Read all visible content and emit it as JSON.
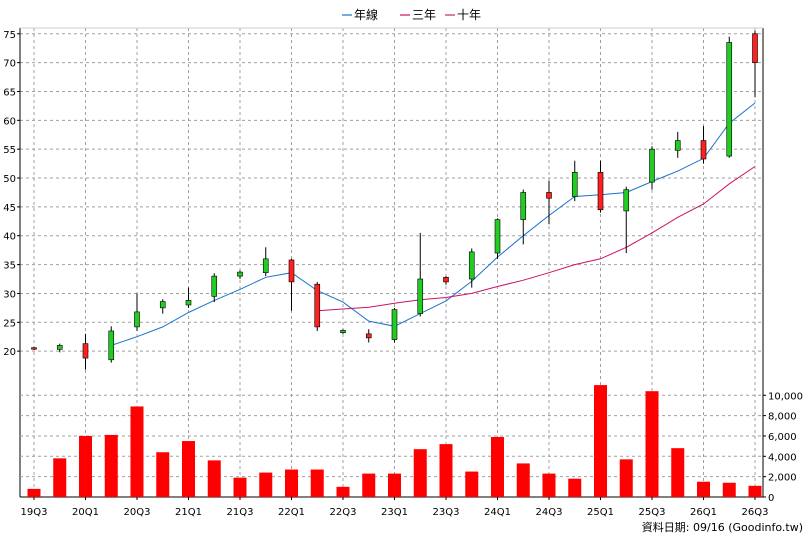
{
  "chart_data": {
    "type": "candlestick",
    "legend": [
      {
        "name": "年線",
        "color": "#1874cd"
      },
      {
        "name": "三年",
        "color": "#cc1166"
      },
      {
        "name": "十年",
        "color": "#b03060"
      }
    ],
    "price_axis": {
      "min": 15,
      "max": 76,
      "ticks": [
        20,
        25,
        30,
        35,
        40,
        45,
        50,
        55,
        60,
        65,
        70,
        75
      ]
    },
    "volume_axis": {
      "min": 0,
      "max": 11500,
      "ticks": [
        0,
        2000,
        4000,
        6000,
        8000,
        10000
      ],
      "tick_labels": [
        "0",
        "2,000",
        "4,000",
        "6,000",
        "8,000",
        "10,000"
      ]
    },
    "x_tick_labels": [
      "19Q3",
      "20Q1",
      "20Q3",
      "21Q1",
      "21Q3",
      "22Q1",
      "22Q3",
      "23Q1",
      "23Q3",
      "24Q1",
      "24Q3",
      "25Q1",
      "25Q3",
      "26Q1",
      "26Q3"
    ],
    "candles": [
      {
        "open": 20.4,
        "close": 20.6,
        "high": 20.7,
        "low": 20.2
      },
      {
        "open": 21.0,
        "close": 20.3,
        "high": 21.3,
        "low": 19.8
      },
      {
        "open": 18.8,
        "close": 21.3,
        "high": 23.0,
        "low": 16.8
      },
      {
        "open": 23.5,
        "close": 18.5,
        "high": 24.3,
        "low": 18.0
      },
      {
        "open": 26.8,
        "close": 24.2,
        "high": 30.0,
        "low": 23.5
      },
      {
        "open": 28.6,
        "close": 27.5,
        "high": 29.0,
        "low": 26.5
      },
      {
        "open": 28.8,
        "close": 28.0,
        "high": 31.0,
        "low": 27.5
      },
      {
        "open": 33.0,
        "close": 29.5,
        "high": 33.5,
        "low": 28.5
      },
      {
        "open": 33.7,
        "close": 33.0,
        "high": 34.0,
        "low": 32.5
      },
      {
        "open": 36.0,
        "close": 33.6,
        "high": 38.0,
        "low": 33.0
      },
      {
        "open": 32.0,
        "close": 35.8,
        "high": 36.0,
        "low": 27.0
      },
      {
        "open": 24.2,
        "close": 31.6,
        "high": 32.0,
        "low": 23.5
      },
      {
        "open": 23.6,
        "close": 23.2,
        "high": 23.8,
        "low": 23.0
      },
      {
        "open": 22.3,
        "close": 23.0,
        "high": 23.8,
        "low": 21.5
      },
      {
        "open": 27.2,
        "close": 22.0,
        "high": 27.5,
        "low": 21.5
      },
      {
        "open": 32.5,
        "close": 26.5,
        "high": 40.5,
        "low": 26.0
      },
      {
        "open": 32.0,
        "close": 32.8,
        "high": 33.0,
        "low": 31.5
      },
      {
        "open": 37.2,
        "close": 32.5,
        "high": 37.8,
        "low": 31.0
      },
      {
        "open": 42.8,
        "close": 37.0,
        "high": 43.0,
        "low": 36.0
      },
      {
        "open": 47.5,
        "close": 42.8,
        "high": 48.0,
        "low": 38.5
      },
      {
        "open": 46.5,
        "close": 47.5,
        "high": 49.5,
        "low": 42.0
      },
      {
        "open": 51.0,
        "close": 46.8,
        "high": 53.0,
        "low": 46.0
      },
      {
        "open": 44.5,
        "close": 51.0,
        "high": 53.0,
        "low": 44.0
      },
      {
        "open": 48.0,
        "close": 44.3,
        "high": 48.5,
        "low": 37.0
      },
      {
        "open": 55.0,
        "close": 49.3,
        "high": 55.5,
        "low": 48.0
      },
      {
        "open": 56.5,
        "close": 54.8,
        "high": 58.0,
        "low": 53.5
      },
      {
        "open": 53.3,
        "close": 56.5,
        "high": 59.0,
        "low": 52.5
      },
      {
        "open": 73.5,
        "close": 53.8,
        "high": 74.5,
        "low": 53.5
      },
      {
        "open": 70.0,
        "close": 75.0,
        "high": 75.5,
        "low": 64.0
      }
    ],
    "volumes": [
      800,
      3800,
      6000,
      6100,
      8900,
      4400,
      5500,
      3600,
      1900,
      2400,
      2700,
      2700,
      1000,
      2300,
      2300,
      4700,
      5200,
      2500,
      5900,
      3300,
      2300,
      1800,
      11000,
      3700,
      10400,
      4800,
      1500,
      1400,
      1100
    ],
    "series": [
      {
        "name": "年線",
        "start_index": 3,
        "values": [
          21.0,
          22.5,
          24.2,
          26.7,
          28.8,
          30.7,
          32.8,
          33.6,
          30.5,
          28.5,
          25.2,
          24.3,
          26.5,
          28.7,
          32.1,
          36.3,
          40.0,
          43.5,
          46.8,
          47.1,
          47.5,
          49.4,
          51.2,
          53.4,
          59.5,
          63.0
        ]
      },
      {
        "name": "三年",
        "start_index": 11,
        "values": [
          27.0,
          27.3,
          27.6,
          28.3,
          28.9,
          29.3,
          30.0,
          31.2,
          32.3,
          33.6,
          35.0,
          36.0,
          38.0,
          40.5,
          43.2,
          45.5,
          49.0,
          52.0
        ]
      }
    ],
    "source": "資料日期: 09/16  (Goodinfo.tw)"
  }
}
